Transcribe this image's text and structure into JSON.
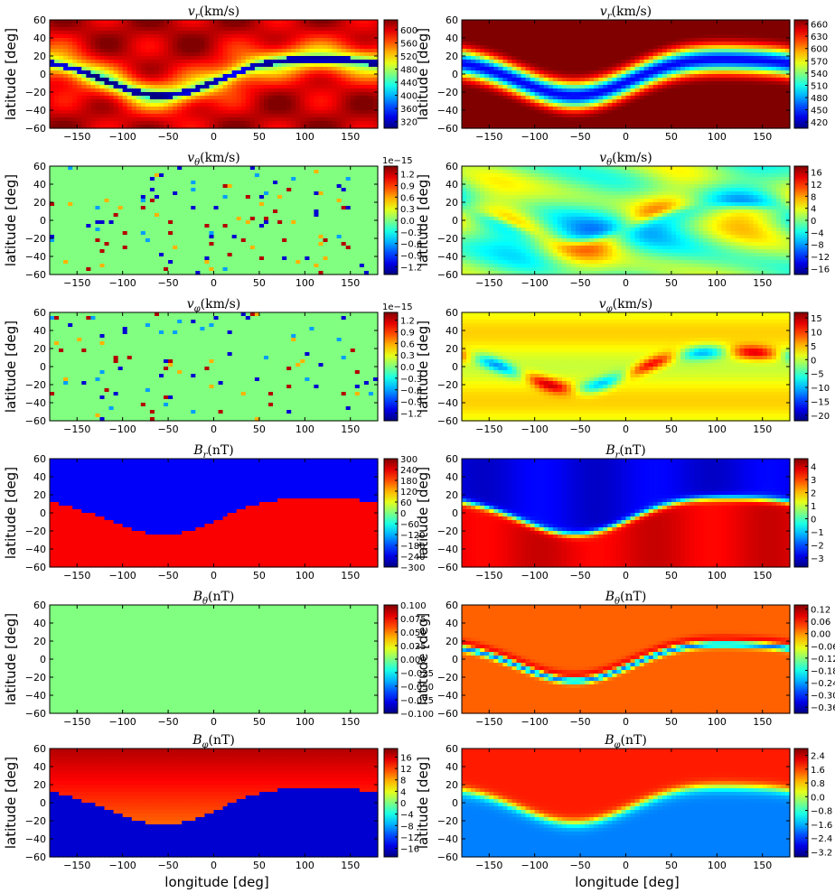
{
  "chart_data": {
    "type": "heatmap",
    "x_axis_label": "longitude [deg]",
    "y_axis_label": "latitude [deg]",
    "x_ticks": [
      -150,
      -100,
      -50,
      0,
      50,
      100,
      150
    ],
    "y_ticks": [
      60,
      40,
      20,
      0,
      -20,
      -40,
      -60
    ],
    "xlim": [
      -180,
      180
    ],
    "ylim": [
      -60,
      60
    ],
    "colormap": "jet",
    "panels": [
      {
        "id": "vr-left",
        "title": "v_r(km/s)",
        "title_var": "v",
        "title_sub": "r",
        "title_unit": "(km/s)",
        "col": 0,
        "row": 0,
        "field": "vr_left",
        "offset": "",
        "cb_ticks": [
          "600",
          "560",
          "520",
          "480",
          "440",
          "400",
          "360",
          "320"
        ],
        "cb_range": [
          300,
          630
        ]
      },
      {
        "id": "vr-right",
        "title": "v_r(km/s)",
        "title_var": "v",
        "title_sub": "r",
        "title_unit": "(km/s)",
        "col": 1,
        "row": 0,
        "field": "vr_right",
        "offset": "",
        "cb_ticks": [
          "660",
          "630",
          "600",
          "570",
          "540",
          "510",
          "480",
          "450",
          "420"
        ],
        "cb_range": [
          405,
          670
        ]
      },
      {
        "id": "vtheta-left",
        "title": "v_θ(km/s)",
        "title_var": "v",
        "title_sub": "θ",
        "title_unit": "(km/s)",
        "col": 0,
        "row": 1,
        "field": "noise",
        "offset": "1e−15",
        "cb_ticks": [
          "1.2",
          "0.9",
          "0.6",
          "0.3",
          "0.0",
          "−0.3",
          "−0.6",
          "−0.9",
          "−1.2"
        ],
        "cb_range": [
          -1.4,
          1.4
        ]
      },
      {
        "id": "vtheta-right",
        "title": "v_θ(km/s)",
        "title_var": "v",
        "title_sub": "θ",
        "title_unit": "(km/s)",
        "col": 1,
        "row": 1,
        "field": "vtheta_right",
        "offset": "",
        "cb_ticks": [
          "16",
          "12",
          "8",
          "4",
          "0",
          "−4",
          "−8",
          "−12",
          "−16"
        ],
        "cb_range": [
          -18,
          18
        ]
      },
      {
        "id": "vphi-left",
        "title": "v_φ(km/s)",
        "title_var": "v",
        "title_sub": "φ",
        "title_unit": "(km/s)",
        "col": 0,
        "row": 2,
        "field": "noise",
        "offset": "1e−15",
        "cb_ticks": [
          "1.2",
          "0.9",
          "0.6",
          "0.3",
          "0.0",
          "−0.3",
          "−0.6",
          "−0.9",
          "−1.2"
        ],
        "cb_range": [
          -1.4,
          1.4
        ]
      },
      {
        "id": "vphi-right",
        "title": "v_φ(km/s)",
        "title_var": "v",
        "title_sub": "φ",
        "title_unit": "(km/s)",
        "col": 1,
        "row": 2,
        "field": "vphi_right",
        "offset": "",
        "cb_ticks": [
          "15",
          "10",
          "5",
          "0",
          "−5",
          "−10",
          "−15",
          "−20"
        ],
        "cb_range": [
          -22,
          17
        ]
      },
      {
        "id": "br-left",
        "title": "B_r(nT)",
        "title_var": "B",
        "title_sub": "r",
        "title_unit": "(nT)",
        "col": 0,
        "row": 3,
        "field": "br_left",
        "offset": "",
        "cb_ticks": [
          "300",
          "240",
          "180",
          "120",
          "60",
          "0",
          "−60",
          "−120",
          "−180",
          "−240",
          "−300"
        ],
        "cb_range": [
          -300,
          300
        ]
      },
      {
        "id": "br-right",
        "title": "B_r(nT)",
        "title_var": "B",
        "title_sub": "r",
        "title_unit": "(nT)",
        "col": 1,
        "row": 3,
        "field": "br_right",
        "offset": "",
        "cb_ticks": [
          "4",
          "3",
          "2",
          "1",
          "0",
          "−1",
          "−2",
          "−3"
        ],
        "cb_range": [
          -3.7,
          4.6
        ]
      },
      {
        "id": "btheta-left",
        "title": "B_θ(nT)",
        "title_var": "B",
        "title_sub": "θ",
        "title_unit": "(nT)",
        "col": 0,
        "row": 4,
        "field": "zero",
        "offset": "",
        "cb_ticks": [
          "0.100",
          "0.075",
          "0.050",
          "0.025",
          "0.000",
          "−0.025",
          "−0.050",
          "−0.075",
          "−0.100"
        ],
        "cb_range": [
          -0.1,
          0.1
        ]
      },
      {
        "id": "btheta-right",
        "title": "B_θ(nT)",
        "title_var": "B",
        "title_sub": "θ",
        "title_unit": "(nT)",
        "col": 1,
        "row": 4,
        "field": "btheta_right",
        "offset": "",
        "cb_ticks": [
          "0.12",
          "0.06",
          "0.00",
          "−0.06",
          "−0.12",
          "−0.18",
          "−0.24",
          "−0.30",
          "−0.36"
        ],
        "cb_range": [
          -0.39,
          0.14
        ]
      },
      {
        "id": "bphi-left",
        "title": "B_φ(nT)",
        "title_var": "B",
        "title_sub": "φ",
        "title_unit": "(nT)",
        "col": 0,
        "row": 5,
        "field": "bphi_left",
        "offset": "",
        "cb_ticks": [
          "16",
          "12",
          "8",
          "4",
          "0",
          "−4",
          "−8",
          "−12",
          "−16"
        ],
        "cb_range": [
          -19,
          19
        ]
      },
      {
        "id": "bphi-right",
        "title": "B_φ(nT)",
        "title_var": "B",
        "title_sub": "φ",
        "title_unit": "(nT)",
        "col": 1,
        "row": 5,
        "field": "bphi_right",
        "offset": "",
        "cb_ticks": [
          "2.4",
          "1.6",
          "0.8",
          "0.0",
          "−0.8",
          "−1.6",
          "−2.4",
          "−3.2"
        ],
        "cb_range": [
          -3.5,
          2.8
        ]
      }
    ]
  }
}
